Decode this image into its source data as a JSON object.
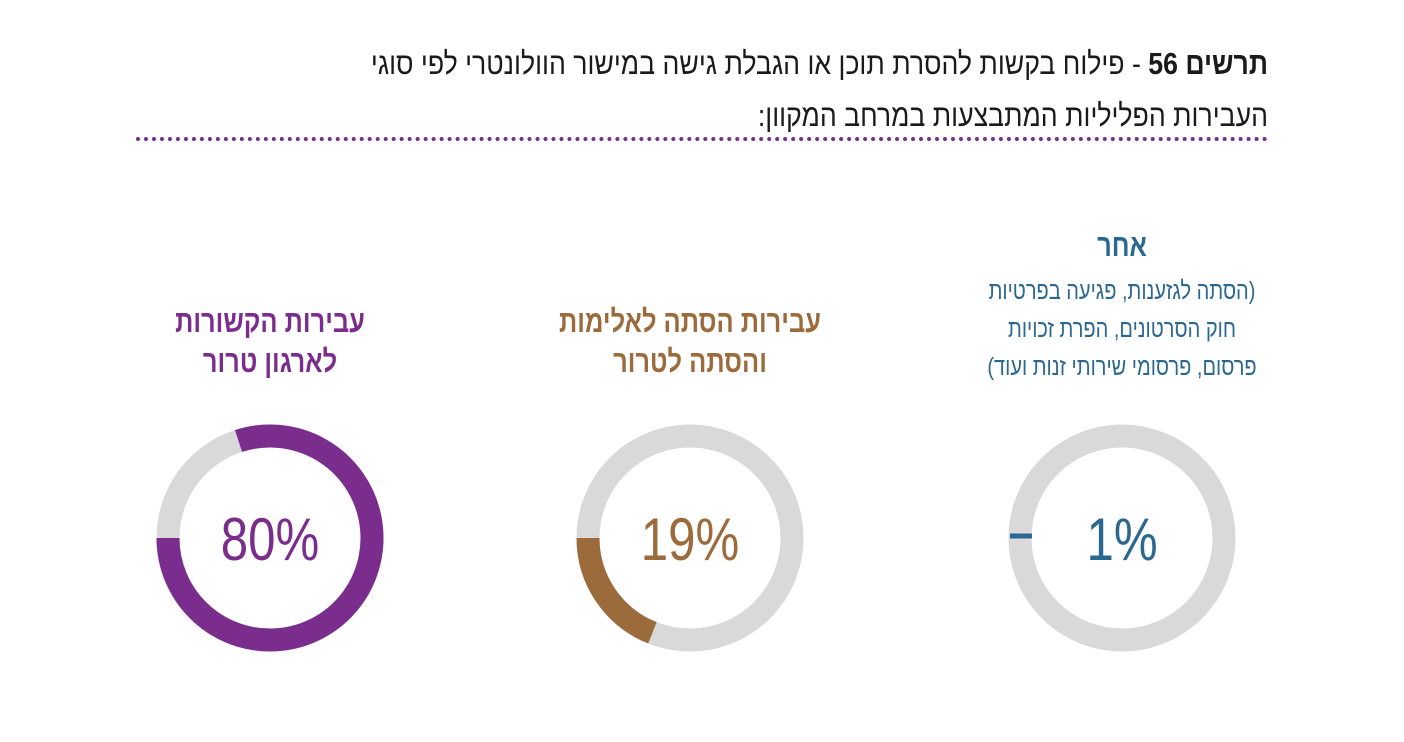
{
  "header": {
    "figure_label": "תרשים 56",
    "text": " - פילוח בקשות להסרת תוכן או הגבלת גישה במישור הוולונטרי לפי סוגי העבירות הפליליות המתבצעות במרחב המקוון:"
  },
  "colors": {
    "track": "#d9d9d9",
    "divider": "#7b2d8e",
    "terror": "#7b2d8e",
    "incitement": "#9c6b3c",
    "other": "#2a6791"
  },
  "chart_data": {
    "type": "pie",
    "segments": [
      {
        "name": "עבירות הקשורות לארגון טרור",
        "title_lines": [
          "עבירות הקשורות",
          "לארגון טרור"
        ],
        "value": 80,
        "label": "80%",
        "color": "#7b2d8e"
      },
      {
        "name": "עבירות הסתה לאלימות והסתה לטרור",
        "title_lines": [
          "עבירות הסתה לאלימות",
          "והסתה לטרור"
        ],
        "value": 19,
        "label": "19%",
        "color": "#9c6b3c"
      },
      {
        "name": "אחר",
        "title_lines": [
          "אחר"
        ],
        "subtitle_lines": [
          "(הסתה לגזענות, פגיעה בפרטיות",
          "חוק הסרטונים, הפרת זכויות",
          "פרסום, פרסומי שירותי זנות ועוד)"
        ],
        "value": 1,
        "label": "1%",
        "color": "#2a6791"
      }
    ]
  }
}
